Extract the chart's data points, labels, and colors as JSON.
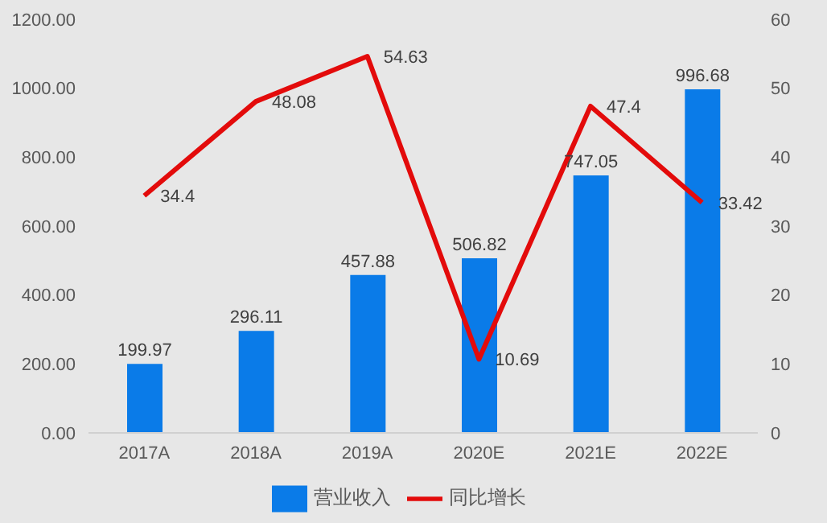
{
  "chart_data": {
    "type": "bar",
    "categories": [
      "2017A",
      "2018A",
      "2019A",
      "2020E",
      "2021E",
      "2022E"
    ],
    "series": [
      {
        "name": "营业收入",
        "color": "#0a7be8",
        "values": [
          199.97,
          296.11,
          457.88,
          506.82,
          747.05,
          996.68
        ]
      },
      {
        "name": "同比增长",
        "type": "line",
        "axis": "y2",
        "color": "#e30b0b",
        "values": [
          34.4,
          48.08,
          54.63,
          10.69,
          47.4,
          33.42
        ]
      }
    ],
    "ylim": [
      0,
      1200
    ],
    "yticks": [
      {
        "value": 0,
        "label": "0.00"
      },
      {
        "value": 200,
        "label": "200.00"
      },
      {
        "value": 400,
        "label": "400.00"
      },
      {
        "value": 600,
        "label": "600.00"
      },
      {
        "value": 800,
        "label": "800.00"
      },
      {
        "value": 1000,
        "label": "1000.00"
      },
      {
        "value": 1200,
        "label": "1200.00"
      }
    ],
    "y2lim": [
      0,
      60
    ],
    "y2ticks": [
      0,
      10,
      20,
      30,
      40,
      50,
      60
    ],
    "data_labels": true,
    "legend": "bottom",
    "grid": false,
    "marker": "none"
  }
}
